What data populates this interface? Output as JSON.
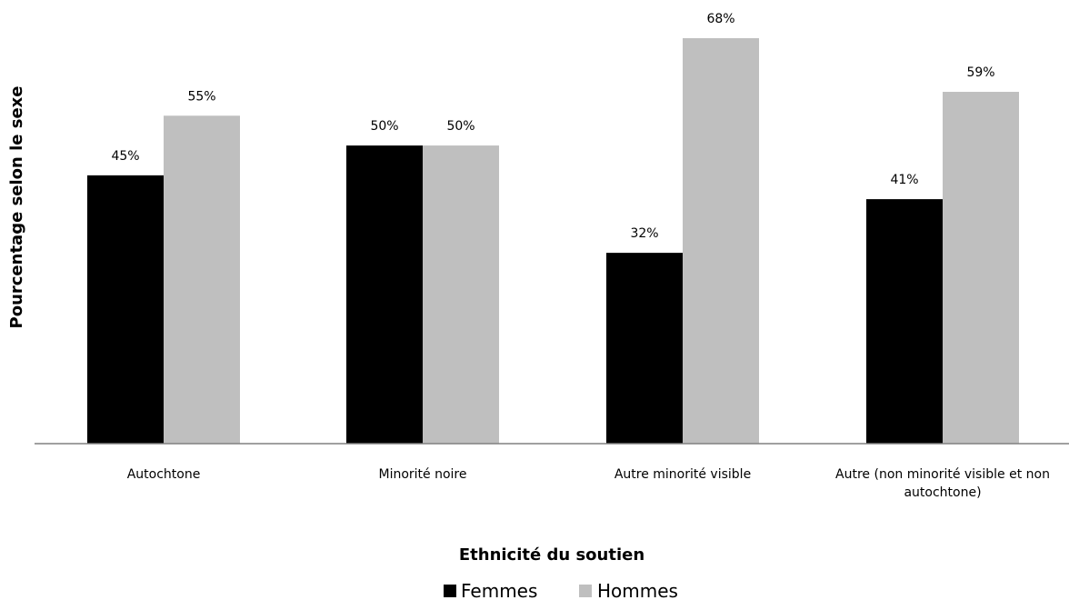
{
  "chart_data": {
    "type": "bar",
    "categories": [
      "Autochtone",
      "Minorité noire",
      "Autre minorité visible",
      "Autre (non minorité visible et non autochtone)"
    ],
    "category_label_lines": [
      [
        "Autochtone"
      ],
      [
        "Minorité noire"
      ],
      [
        "Autre minorité visible"
      ],
      [
        "Autre (non minorité visible et non",
        "autochtone)"
      ]
    ],
    "series": [
      {
        "name": "Femmes",
        "color": "#000000",
        "values": [
          45,
          50,
          32,
          41
        ],
        "labels": [
          "45%",
          "50%",
          "32%",
          "41%"
        ]
      },
      {
        "name": "Hommes",
        "color": "#bfbfbf",
        "values": [
          55,
          50,
          68,
          59
        ],
        "labels": [
          "55%",
          "50%",
          "68%",
          "59%"
        ]
      }
    ],
    "xlabel": "Ethnicité du soutien",
    "ylabel": "Pourcentage selon le sexe",
    "ylim": [
      0,
      75
    ],
    "grid": false,
    "legend_position": "bottom",
    "axis_color": "#808080"
  }
}
